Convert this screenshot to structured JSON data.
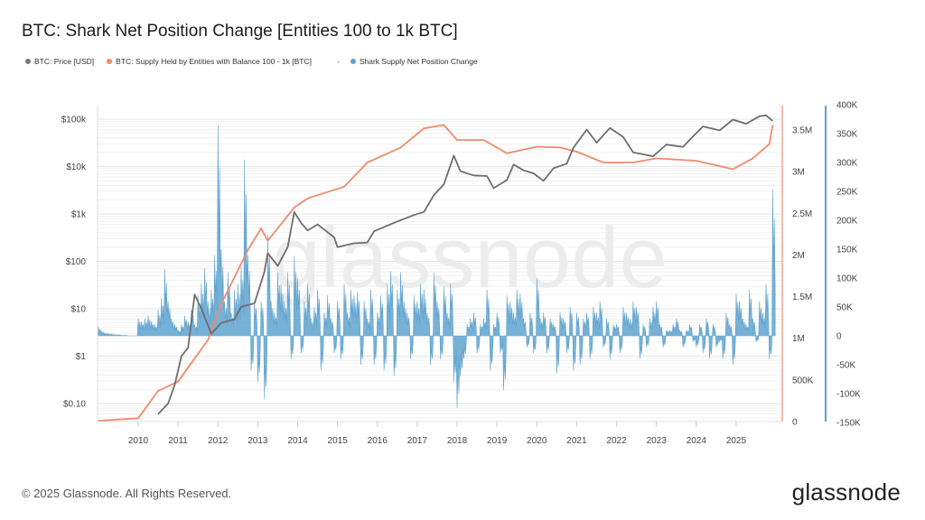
{
  "title": "BTC: Shark Net Position Change [Entities 100 to 1k BTC]",
  "footer": "© 2025 Glassnode. All Rights Reserved.",
  "logo": "glassnode",
  "watermark": "glassnode",
  "legend": [
    {
      "label": "BTC: Price [USD]",
      "color": "#777777"
    },
    {
      "label": "BTC: Supply Held by Entities with Balance 100 - 1k [BTC]",
      "color": "#f08a6c"
    },
    {
      "separator": "-",
      "label": "Shark Supply Net Position Change",
      "color": "#5fa3cf"
    }
  ],
  "chart_data": {
    "type": "line",
    "title": "BTC: Shark Net Position Change [Entities 100 to 1k BTC]",
    "grid": true,
    "legend_position": "top-left",
    "x_axis": {
      "ticks": [
        "2010",
        "2011",
        "2012",
        "2013",
        "2014",
        "2015",
        "2016",
        "2017",
        "2018",
        "2019",
        "2020",
        "2021",
        "2022",
        "2023",
        "2024",
        "2025"
      ],
      "range": [
        "2009-01",
        "2025-12"
      ]
    },
    "y_axes": [
      {
        "side": "left",
        "scale": "log",
        "ticks": [
          "$0.10",
          "$1",
          "$10",
          "$100",
          "$1k",
          "$10k",
          "$100k"
        ],
        "range": [
          0.05,
          300000
        ]
      },
      {
        "side": "right",
        "color": "#f08a6c",
        "scale": "linear",
        "ticks": [
          "0",
          "500K",
          "1M",
          "1.5M",
          "2M",
          "2.5M",
          "3M",
          "3.5M"
        ],
        "range": [
          0,
          3800000
        ]
      },
      {
        "side": "right-outer",
        "color": "#5fa3cf",
        "scale": "linear",
        "ticks": [
          "-150K",
          "-100K",
          "-50K",
          "0",
          "50K",
          "100K",
          "150K",
          "200K",
          "250K",
          "300K",
          "350K",
          "400K"
        ],
        "range": [
          -150000,
          400000
        ]
      }
    ],
    "series": [
      {
        "name": "BTC: Price [USD]",
        "type": "line",
        "axis": "left",
        "color": "#6e6e6e",
        "points": [
          [
            "2010-07",
            0.06
          ],
          [
            "2010-10",
            0.1
          ],
          [
            "2010-12",
            0.25
          ],
          [
            "2011-02",
            1
          ],
          [
            "2011-04",
            1.5
          ],
          [
            "2011-06",
            20
          ],
          [
            "2011-08",
            10
          ],
          [
            "2011-11",
            3
          ],
          [
            "2012-02",
            5
          ],
          [
            "2012-06",
            6
          ],
          [
            "2012-08",
            11
          ],
          [
            "2012-12",
            13
          ],
          [
            "2013-03",
            60
          ],
          [
            "2013-04",
            150
          ],
          [
            "2013-07",
            80
          ],
          [
            "2013-10",
            200
          ],
          [
            "2013-12",
            1100
          ],
          [
            "2014-02",
            650
          ],
          [
            "2014-04",
            450
          ],
          [
            "2014-07",
            600
          ],
          [
            "2014-12",
            320
          ],
          [
            "2015-01",
            200
          ],
          [
            "2015-06",
            240
          ],
          [
            "2015-10",
            250
          ],
          [
            "2015-12",
            430
          ],
          [
            "2016-06",
            650
          ],
          [
            "2016-12",
            950
          ],
          [
            "2017-03",
            1100
          ],
          [
            "2017-06",
            2500
          ],
          [
            "2017-09",
            4200
          ],
          [
            "2017-12",
            17000
          ],
          [
            "2018-02",
            8000
          ],
          [
            "2018-06",
            6500
          ],
          [
            "2018-10",
            6300
          ],
          [
            "2018-12",
            3500
          ],
          [
            "2019-04",
            5200
          ],
          [
            "2019-06",
            11000
          ],
          [
            "2019-09",
            8300
          ],
          [
            "2019-12",
            7200
          ],
          [
            "2020-03",
            5000
          ],
          [
            "2020-06",
            9200
          ],
          [
            "2020-10",
            11500
          ],
          [
            "2020-12",
            25000
          ],
          [
            "2021-04",
            60000
          ],
          [
            "2021-07",
            32000
          ],
          [
            "2021-11",
            65000
          ],
          [
            "2022-03",
            42000
          ],
          [
            "2022-06",
            20000
          ],
          [
            "2022-12",
            16500
          ],
          [
            "2023-04",
            29000
          ],
          [
            "2023-09",
            26000
          ],
          [
            "2023-12",
            43000
          ],
          [
            "2024-03",
            70000
          ],
          [
            "2024-08",
            58000
          ],
          [
            "2024-12",
            98000
          ],
          [
            "2025-04",
            80000
          ],
          [
            "2025-08",
            115000
          ],
          [
            "2025-10",
            120000
          ],
          [
            "2025-12",
            92000
          ]
        ]
      },
      {
        "name": "BTC: Supply Held by Entities with Balance 100 - 1k [BTC]",
        "type": "line",
        "axis": "right",
        "color": "#f08a6c",
        "points": [
          [
            "2009-01",
            10000
          ],
          [
            "2010-01",
            40000
          ],
          [
            "2010-07",
            370000
          ],
          [
            "2011-01",
            480000
          ],
          [
            "2011-10",
            980000
          ],
          [
            "2012-02",
            1410000
          ],
          [
            "2012-10",
            2060000
          ],
          [
            "2013-02",
            2320000
          ],
          [
            "2013-04",
            2170000
          ],
          [
            "2013-12",
            2570000
          ],
          [
            "2014-04",
            2680000
          ],
          [
            "2015-03",
            2820000
          ],
          [
            "2015-10",
            3110000
          ],
          [
            "2016-08",
            3290000
          ],
          [
            "2017-03",
            3520000
          ],
          [
            "2017-09",
            3560000
          ],
          [
            "2018-01",
            3380000
          ],
          [
            "2018-09",
            3380000
          ],
          [
            "2019-04",
            3220000
          ],
          [
            "2020-01",
            3300000
          ],
          [
            "2020-08",
            3290000
          ],
          [
            "2021-01",
            3240000
          ],
          [
            "2021-09",
            3110000
          ],
          [
            "2022-06",
            3110000
          ],
          [
            "2023-01",
            3160000
          ],
          [
            "2024-01",
            3130000
          ],
          [
            "2024-12",
            3030000
          ],
          [
            "2025-06",
            3160000
          ],
          [
            "2025-11",
            3330000
          ],
          [
            "2025-12",
            3560000
          ]
        ]
      },
      {
        "name": "Shark Supply Net Position Change",
        "type": "area",
        "axis": "right-outer",
        "color": "#5fa3cf",
        "start": "2009-01",
        "frequency": "monthly",
        "unit": "K BTC",
        "values": [
          15,
          8,
          5,
          4,
          3,
          2,
          2,
          1,
          1,
          0,
          0,
          0,
          30,
          25,
          30,
          35,
          25,
          20,
          45,
          65,
          115,
          60,
          30,
          20,
          10,
          20,
          35,
          25,
          45,
          20,
          70,
          90,
          117,
          60,
          80,
          140,
          365,
          150,
          60,
          110,
          40,
          80,
          90,
          120,
          305,
          140,
          -60,
          60,
          -80,
          60,
          -110,
          175,
          60,
          40,
          110,
          90,
          60,
          110,
          -40,
          138,
          100,
          -30,
          60,
          90,
          30,
          50,
          80,
          -60,
          40,
          70,
          30,
          -30,
          60,
          -40,
          90,
          40,
          80,
          70,
          76,
          -50,
          60,
          30,
          80,
          -50,
          40,
          70,
          -60,
          90,
          112,
          -70,
          80,
          110,
          60,
          40,
          -40,
          70,
          60,
          90,
          80,
          40,
          -50,
          110,
          60,
          -40,
          86,
          40,
          90,
          -80,
          -125,
          -70,
          -40,
          20,
          30,
          40,
          -30,
          20,
          30,
          80,
          -60,
          20,
          40,
          -30,
          -94,
          70,
          60,
          40,
          80,
          73,
          30,
          -20,
          40,
          -30,
          100,
          30,
          40,
          -30,
          30,
          20,
          -65,
          40,
          30,
          -30,
          50,
          -60,
          40,
          -50,
          30,
          40,
          -40,
          50,
          40,
          60,
          -20,
          30,
          -40,
          20,
          20,
          -30,
          50,
          40,
          30,
          60,
          50,
          -40,
          20,
          -20,
          30,
          50,
          60,
          20,
          -20,
          10,
          10,
          20,
          30,
          10,
          -20,
          10,
          20,
          -10,
          -20,
          20,
          -30,
          30,
          -40,
          20,
          -20,
          -10,
          -40,
          40,
          20,
          -50,
          73,
          60,
          30,
          20,
          80,
          30,
          -10,
          60,
          40,
          90,
          -40,
          253
        ]
      }
    ]
  }
}
